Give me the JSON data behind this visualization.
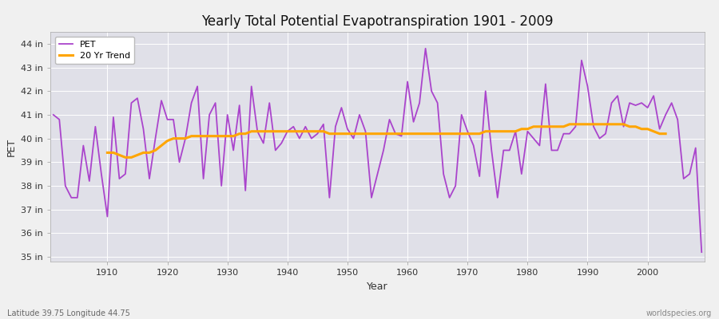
{
  "title": "Yearly Total Potential Evapotranspiration 1901 - 2009",
  "xlabel": "Year",
  "ylabel": "PET",
  "lat_lon_label": "Latitude 39.75 Longitude 44.75",
  "source_label": "worldspecies.org",
  "pet_color": "#AA44CC",
  "trend_color": "#FFA500",
  "background_color": "#F0F0F0",
  "plot_bg_color": "#E0E0E8",
  "ylim": [
    34.8,
    44.5
  ],
  "yticks": [
    35,
    36,
    37,
    38,
    39,
    40,
    41,
    42,
    43,
    44
  ],
  "ytick_labels": [
    "35 in",
    "36 in",
    "37 in",
    "38 in",
    "39 in",
    "40 in",
    "41 in",
    "42 in",
    "43 in",
    "44 in"
  ],
  "years": [
    1901,
    1902,
    1903,
    1904,
    1905,
    1906,
    1907,
    1908,
    1909,
    1910,
    1911,
    1912,
    1913,
    1914,
    1915,
    1916,
    1917,
    1918,
    1919,
    1920,
    1921,
    1922,
    1923,
    1924,
    1925,
    1926,
    1927,
    1928,
    1929,
    1930,
    1931,
    1932,
    1933,
    1934,
    1935,
    1936,
    1937,
    1938,
    1939,
    1940,
    1941,
    1942,
    1943,
    1944,
    1945,
    1946,
    1947,
    1948,
    1949,
    1950,
    1951,
    1952,
    1953,
    1954,
    1955,
    1956,
    1957,
    1958,
    1959,
    1960,
    1961,
    1962,
    1963,
    1964,
    1965,
    1966,
    1967,
    1968,
    1969,
    1970,
    1971,
    1972,
    1973,
    1974,
    1975,
    1976,
    1977,
    1978,
    1979,
    1980,
    1981,
    1982,
    1983,
    1984,
    1985,
    1986,
    1987,
    1988,
    1989,
    1990,
    1991,
    1992,
    1993,
    1994,
    1995,
    1996,
    1997,
    1998,
    1999,
    2000,
    2001,
    2002,
    2003,
    2004,
    2005,
    2006,
    2007,
    2008,
    2009
  ],
  "pet_values": [
    41.0,
    40.8,
    38.0,
    37.5,
    37.5,
    39.7,
    38.2,
    40.5,
    38.5,
    36.7,
    40.9,
    38.3,
    38.5,
    41.5,
    41.7,
    40.4,
    38.3,
    40.0,
    41.6,
    40.8,
    40.8,
    39.0,
    40.0,
    41.5,
    42.2,
    38.3,
    41.0,
    41.5,
    38.0,
    41.0,
    39.5,
    41.4,
    37.8,
    42.2,
    40.3,
    39.8,
    41.5,
    39.5,
    39.8,
    40.3,
    40.5,
    40.0,
    40.5,
    40.0,
    40.2,
    40.6,
    37.5,
    40.5,
    41.3,
    40.4,
    40.0,
    41.0,
    40.3,
    37.5,
    38.5,
    39.5,
    40.8,
    40.2,
    40.1,
    42.4,
    40.7,
    41.5,
    43.8,
    42.0,
    41.5,
    38.5,
    37.5,
    38.0,
    41.0,
    40.3,
    39.7,
    38.4,
    42.0,
    39.5,
    37.5,
    39.5,
    39.5,
    40.3,
    38.5,
    40.3,
    40.0,
    39.7,
    42.3,
    39.5,
    39.5,
    40.2,
    40.2,
    40.5,
    43.3,
    42.2,
    40.5,
    40.0,
    40.2,
    41.5,
    41.8,
    40.5,
    41.5,
    41.4,
    41.5,
    41.3,
    41.8,
    40.4,
    41.0,
    41.5,
    40.8,
    38.3,
    38.5,
    39.6,
    35.2
  ],
  "trend_values": [
    null,
    null,
    null,
    null,
    null,
    null,
    null,
    null,
    null,
    39.4,
    39.4,
    39.3,
    39.2,
    39.2,
    39.3,
    39.4,
    39.4,
    39.5,
    39.7,
    39.9,
    40.0,
    40.0,
    40.0,
    40.1,
    40.1,
    40.1,
    40.1,
    40.1,
    40.1,
    40.1,
    40.1,
    40.2,
    40.2,
    40.3,
    40.3,
    40.3,
    40.3,
    40.3,
    40.3,
    40.3,
    40.3,
    40.3,
    40.3,
    40.3,
    40.3,
    40.3,
    40.2,
    40.2,
    40.2,
    40.2,
    40.2,
    40.2,
    40.2,
    40.2,
    40.2,
    40.2,
    40.2,
    40.2,
    40.2,
    40.2,
    40.2,
    40.2,
    40.2,
    40.2,
    40.2,
    40.2,
    40.2,
    40.2,
    40.2,
    40.2,
    40.2,
    40.2,
    40.3,
    40.3,
    40.3,
    40.3,
    40.3,
    40.3,
    40.4,
    40.4,
    40.5,
    40.5,
    40.5,
    40.5,
    40.5,
    40.5,
    40.6,
    40.6,
    40.6,
    40.6,
    40.6,
    40.6,
    40.6,
    40.6,
    40.6,
    40.6,
    40.5,
    40.5,
    40.4,
    40.4,
    40.3,
    40.2,
    40.2,
    null
  ]
}
